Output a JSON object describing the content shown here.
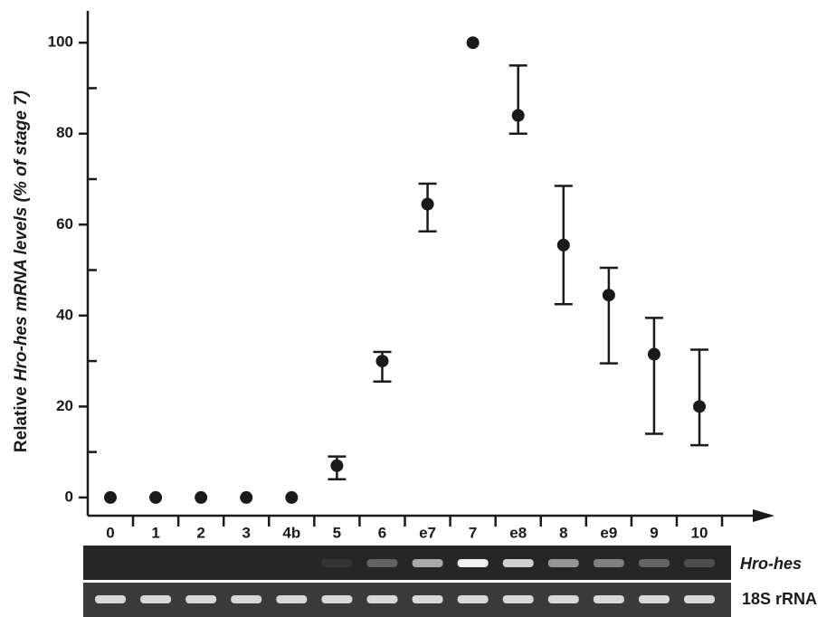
{
  "chart_data": {
    "type": "errorbar",
    "ylabel": [
      "Relative",
      "Hro-hes mRNA levels (% of stage 7)"
    ],
    "categories": [
      "0",
      "1",
      "2",
      "3",
      "4b",
      "5",
      "6",
      "e7",
      "7",
      "e8",
      "8",
      "e9",
      "9",
      "10"
    ],
    "series": [
      {
        "color": "#1a1a1a",
        "values": [
          0,
          0,
          0,
          0,
          0,
          7,
          30,
          64.5,
          100,
          84,
          55.5,
          44.5,
          31.5,
          20
        ],
        "lower": [
          null,
          null,
          null,
          null,
          null,
          4,
          25.5,
          58.5,
          null,
          80,
          42.5,
          29.5,
          14,
          11.5
        ],
        "upper": [
          null,
          null,
          null,
          null,
          null,
          9,
          32,
          69,
          null,
          95,
          68.5,
          50.5,
          39.5,
          32.5
        ]
      }
    ],
    "ylim": [
      -4,
      107
    ],
    "yticks": [
      0,
      20,
      40,
      60,
      80,
      100
    ],
    "yminorticks": [
      10,
      30,
      50,
      70,
      90
    ],
    "gel_labels": [
      "Hro-hes",
      "18S rRNA"
    ]
  }
}
